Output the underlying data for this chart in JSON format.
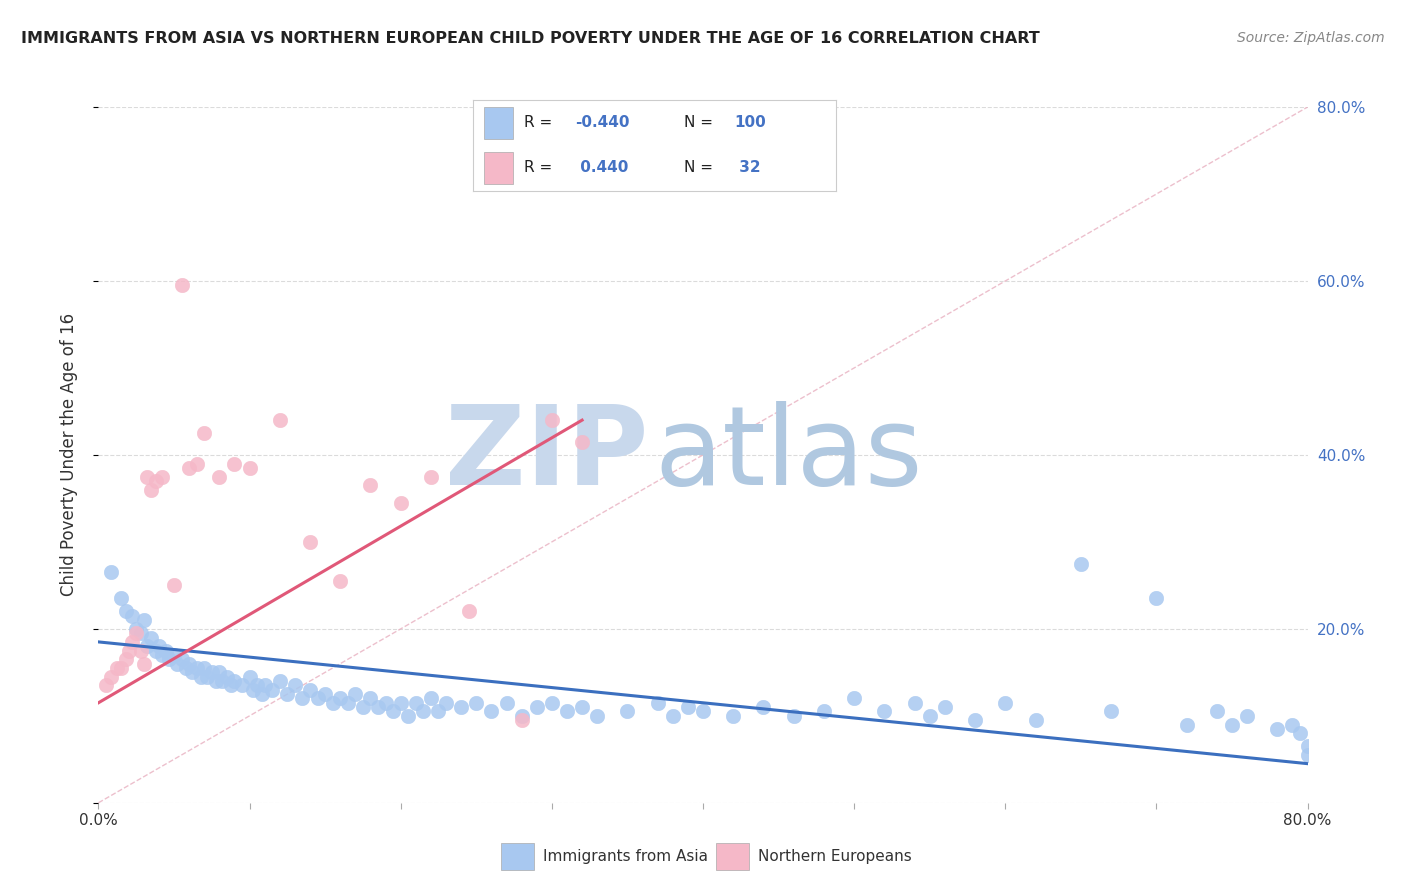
{
  "title": "IMMIGRANTS FROM ASIA VS NORTHERN EUROPEAN CHILD POVERTY UNDER THE AGE OF 16 CORRELATION CHART",
  "source": "Source: ZipAtlas.com",
  "ylabel": "Child Poverty Under the Age of 16",
  "xlim": [
    0,
    0.8
  ],
  "ylim": [
    0,
    0.8
  ],
  "blue_R": -0.44,
  "blue_N": 100,
  "pink_R": 0.44,
  "pink_N": 32,
  "blue_color": "#A8C8F0",
  "pink_color": "#F5B8C8",
  "blue_line_color": "#3B6FBF",
  "pink_line_color": "#E05878",
  "watermark_zip_color": "#C8D8EC",
  "watermark_atlas_color": "#B0C8E0",
  "background_color": "#FFFFFF",
  "grid_color": "#CCCCCC",
  "tick_color": "#4472C4",
  "blue_scatter_x": [
    0.008,
    0.015,
    0.018,
    0.022,
    0.025,
    0.028,
    0.03,
    0.032,
    0.035,
    0.038,
    0.04,
    0.042,
    0.045,
    0.047,
    0.05,
    0.052,
    0.055,
    0.058,
    0.06,
    0.062,
    0.065,
    0.068,
    0.07,
    0.072,
    0.075,
    0.078,
    0.08,
    0.082,
    0.085,
    0.088,
    0.09,
    0.095,
    0.1,
    0.102,
    0.105,
    0.108,
    0.11,
    0.115,
    0.12,
    0.125,
    0.13,
    0.135,
    0.14,
    0.145,
    0.15,
    0.155,
    0.16,
    0.165,
    0.17,
    0.175,
    0.18,
    0.185,
    0.19,
    0.195,
    0.2,
    0.205,
    0.21,
    0.215,
    0.22,
    0.225,
    0.23,
    0.24,
    0.25,
    0.26,
    0.27,
    0.28,
    0.29,
    0.3,
    0.31,
    0.32,
    0.33,
    0.35,
    0.37,
    0.38,
    0.39,
    0.4,
    0.42,
    0.44,
    0.46,
    0.48,
    0.5,
    0.52,
    0.54,
    0.55,
    0.56,
    0.58,
    0.6,
    0.62,
    0.65,
    0.67,
    0.7,
    0.72,
    0.74,
    0.75,
    0.76,
    0.78,
    0.79,
    0.795,
    0.8,
    0.8
  ],
  "blue_scatter_y": [
    0.265,
    0.235,
    0.22,
    0.215,
    0.2,
    0.195,
    0.21,
    0.18,
    0.19,
    0.175,
    0.18,
    0.17,
    0.175,
    0.165,
    0.17,
    0.16,
    0.165,
    0.155,
    0.16,
    0.15,
    0.155,
    0.145,
    0.155,
    0.145,
    0.15,
    0.14,
    0.15,
    0.14,
    0.145,
    0.135,
    0.14,
    0.135,
    0.145,
    0.13,
    0.135,
    0.125,
    0.135,
    0.13,
    0.14,
    0.125,
    0.135,
    0.12,
    0.13,
    0.12,
    0.125,
    0.115,
    0.12,
    0.115,
    0.125,
    0.11,
    0.12,
    0.11,
    0.115,
    0.105,
    0.115,
    0.1,
    0.115,
    0.105,
    0.12,
    0.105,
    0.115,
    0.11,
    0.115,
    0.105,
    0.115,
    0.1,
    0.11,
    0.115,
    0.105,
    0.11,
    0.1,
    0.105,
    0.115,
    0.1,
    0.11,
    0.105,
    0.1,
    0.11,
    0.1,
    0.105,
    0.12,
    0.105,
    0.115,
    0.1,
    0.11,
    0.095,
    0.115,
    0.095,
    0.275,
    0.105,
    0.235,
    0.09,
    0.105,
    0.09,
    0.1,
    0.085,
    0.09,
    0.08,
    0.055,
    0.065
  ],
  "pink_scatter_x": [
    0.005,
    0.008,
    0.012,
    0.015,
    0.018,
    0.02,
    0.022,
    0.025,
    0.028,
    0.03,
    0.032,
    0.035,
    0.038,
    0.042,
    0.05,
    0.055,
    0.06,
    0.065,
    0.07,
    0.08,
    0.09,
    0.1,
    0.12,
    0.14,
    0.16,
    0.18,
    0.2,
    0.22,
    0.245,
    0.28,
    0.3,
    0.32
  ],
  "pink_scatter_y": [
    0.135,
    0.145,
    0.155,
    0.155,
    0.165,
    0.175,
    0.185,
    0.195,
    0.175,
    0.16,
    0.375,
    0.36,
    0.37,
    0.375,
    0.25,
    0.595,
    0.385,
    0.39,
    0.425,
    0.375,
    0.39,
    0.385,
    0.44,
    0.3,
    0.255,
    0.365,
    0.345,
    0.375,
    0.22,
    0.095,
    0.44,
    0.415
  ],
  "blue_trend_x": [
    0.0,
    0.8
  ],
  "blue_trend_y": [
    0.185,
    0.045
  ],
  "pink_trend_x": [
    0.0,
    0.32
  ],
  "pink_trend_y": [
    0.115,
    0.44
  ],
  "legend_R_color": "#4472C4",
  "legend_N_color": "#4472C4"
}
